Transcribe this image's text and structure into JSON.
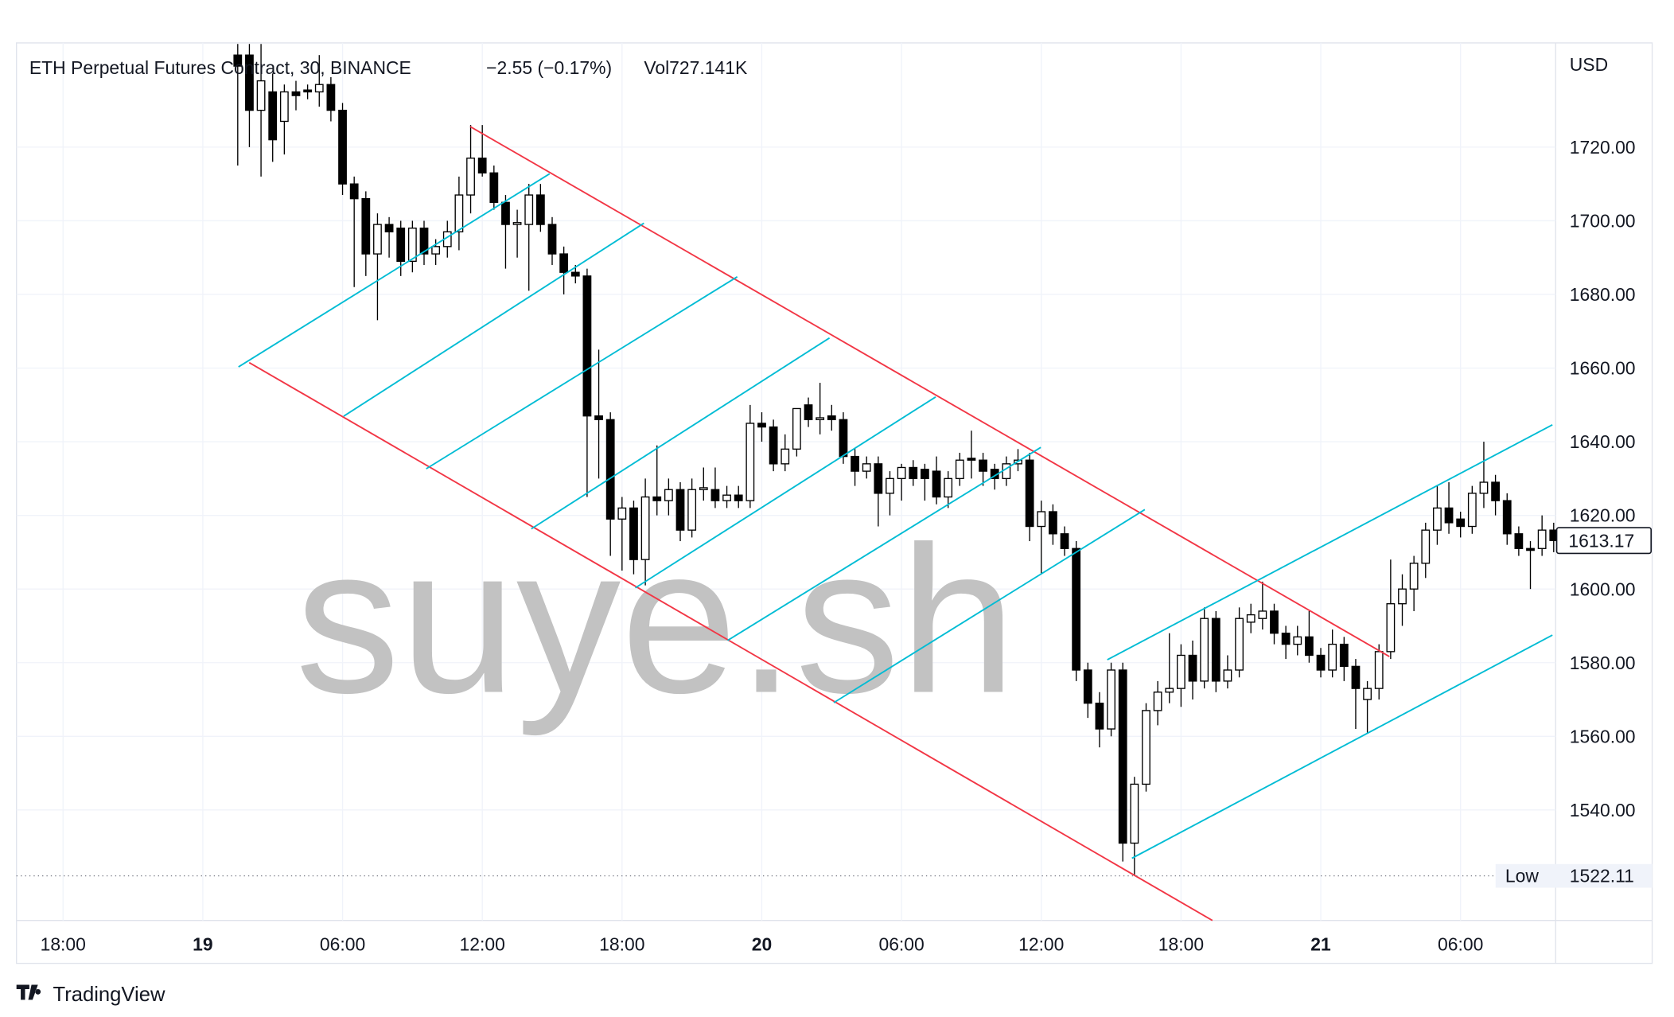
{
  "chart_data": {
    "type": "candlestick",
    "title": "ETH Perpetual Futures Contract, 30, BINANCE",
    "change": "−2.55 (−0.17%)",
    "volume": "Vol727.141K",
    "currency": "USD",
    "watermark": "suye.sh",
    "brand": "TradingView",
    "low_marker": {
      "label": "Low",
      "value": 1522.11
    },
    "x": [
      "19 01:30",
      "19 02:00",
      "19 02:30",
      "19 03:00",
      "19 03:30",
      "19 04:00",
      "19 04:30",
      "19 05:00",
      "19 05:30",
      "19 06:00",
      "19 06:30",
      "19 07:00",
      "19 07:30",
      "19 08:00",
      "19 08:30",
      "19 09:00",
      "19 09:30",
      "19 10:00",
      "19 10:30",
      "19 11:00",
      "19 11:30",
      "19 12:00",
      "19 12:30",
      "19 13:00",
      "19 13:30",
      "19 14:00",
      "19 14:30",
      "19 15:00",
      "19 15:30",
      "19 16:00",
      "19 16:30",
      "19 17:00",
      "19 17:30",
      "19 18:00",
      "19 18:30",
      "19 19:00",
      "19 19:30",
      "19 20:00",
      "19 20:30",
      "19 21:00",
      "19 21:30",
      "19 22:00",
      "19 22:30",
      "19 23:00",
      "19 23:30",
      "20 00:00",
      "20 00:30",
      "20 01:00",
      "20 01:30",
      "20 02:00",
      "20 02:30",
      "20 03:00",
      "20 03:30",
      "20 04:00",
      "20 04:30",
      "20 05:00",
      "20 05:30",
      "20 06:00",
      "20 06:30",
      "20 07:00",
      "20 07:30",
      "20 08:00",
      "20 08:30",
      "20 09:00",
      "20 09:30",
      "20 10:00",
      "20 10:30",
      "20 11:00",
      "20 11:30",
      "20 12:00",
      "20 12:30",
      "20 13:00",
      "20 13:30",
      "20 14:00",
      "20 14:30",
      "20 15:00",
      "20 15:30",
      "20 16:00",
      "20 16:30",
      "20 17:00",
      "20 17:30",
      "20 18:00",
      "20 18:30",
      "20 19:00",
      "20 19:30",
      "20 20:00",
      "20 20:30",
      "20 21:00",
      "20 21:30",
      "20 22:00",
      "20 22:30",
      "20 23:00",
      "20 23:30",
      "21 00:00",
      "21 00:30",
      "21 01:00",
      "21 01:30",
      "21 02:00",
      "21 02:30",
      "21 03:00",
      "21 03:30",
      "21 04:00",
      "21 04:30",
      "21 05:00",
      "21 05:30",
      "21 06:00",
      "21 06:30",
      "21 07:00",
      "21 07:30",
      "21 08:00",
      "21 08:30",
      "21 09:00",
      "21 09:30",
      "21 10:00"
    ],
    "open": [
      1745,
      1745,
      1730,
      1735,
      1727,
      1735,
      1735.5,
      1735,
      1737,
      1730,
      1710,
      1706,
      1691,
      1699,
      1698,
      1689,
      1698,
      1691,
      1693,
      1697,
      1707,
      1717,
      1713,
      1705,
      1699,
      1699,
      1707,
      1699,
      1691,
      1686,
      1685,
      1647,
      1646,
      1619,
      1622,
      1608,
      1625,
      1624,
      1627,
      1616,
      1627,
      1627,
      1624,
      1625.5,
      1624,
      1645,
      1644,
      1634,
      1638,
      1650,
      1646,
      1647,
      1646,
      1636,
      1632,
      1634,
      1626,
      1630,
      1633,
      1632.5,
      1632,
      1625,
      1630,
      1635.5,
      1635,
      1632.5,
      1630,
      1634,
      1635,
      1617,
      1621,
      1615,
      1611,
      1578,
      1569,
      1562,
      1578,
      1531,
      1547,
      1567,
      1572,
      1573,
      1582,
      1575,
      1592,
      1575,
      1578,
      1591,
      1592,
      1594,
      1588,
      1585,
      1587,
      1582,
      1578,
      1585,
      1579,
      1570,
      1573,
      1583,
      1596,
      1600,
      1607,
      1616,
      1622,
      1619,
      1617,
      1626,
      1629,
      1624,
      1615,
      1611,
      1611,
      1616
    ],
    "high": [
      1748,
      1748,
      1748,
      1740,
      1737,
      1738,
      1737,
      1745,
      1739,
      1732,
      1712,
      1708,
      1702,
      1701,
      1700,
      1700,
      1700,
      1695,
      1700,
      1712,
      1726,
      1726,
      1715,
      1707,
      1703,
      1710,
      1710,
      1701,
      1693,
      1688,
      1687,
      1665,
      1648,
      1625,
      1624,
      1630,
      1639,
      1630,
      1629,
      1630,
      1633,
      1633,
      1628,
      1628,
      1650,
      1648,
      1646,
      1642,
      1649,
      1652,
      1656,
      1650,
      1648,
      1638,
      1636,
      1636,
      1632,
      1634,
      1635,
      1634,
      1636,
      1632,
      1637,
      1643,
      1637,
      1634,
      1636,
      1638,
      1637,
      1624,
      1623,
      1617,
      1613,
      1580,
      1572,
      1580,
      1580,
      1549,
      1569,
      1575,
      1588,
      1585,
      1586,
      1595,
      1594,
      1582,
      1595,
      1596,
      1602,
      1596,
      1590,
      1590,
      1594,
      1584,
      1589,
      1587,
      1581,
      1575,
      1585,
      1608,
      1604,
      1609,
      1618,
      1628,
      1629,
      1621,
      1628,
      1640,
      1631,
      1626,
      1617,
      1613,
      1620,
      1618
    ],
    "low": [
      1715,
      1720,
      1712,
      1716,
      1718,
      1730,
      1733,
      1731,
      1727,
      1707,
      1682,
      1685,
      1673,
      1690,
      1685,
      1686,
      1688,
      1688,
      1690,
      1692,
      1702,
      1712,
      1703,
      1687,
      1690,
      1681,
      1697,
      1688,
      1680,
      1683,
      1625,
      1630,
      1609,
      1605,
      1604,
      1601,
      1620,
      1620,
      1613,
      1614,
      1624,
      1622,
      1622,
      1622,
      1622,
      1640,
      1632,
      1632,
      1636,
      1644,
      1642,
      1643,
      1634,
      1628,
      1630,
      1617,
      1620,
      1624,
      1628,
      1624,
      1623,
      1622,
      1628,
      1630,
      1628,
      1627,
      1628,
      1632,
      1613,
      1604,
      1612,
      1609,
      1575,
      1565,
      1557,
      1560,
      1526,
      1522.11,
      1545,
      1563,
      1569,
      1568,
      1570,
      1573,
      1572,
      1573,
      1576,
      1588,
      1589,
      1585,
      1581,
      1582,
      1580,
      1576,
      1576,
      1575,
      1562,
      1561,
      1570,
      1581,
      1590,
      1594,
      1603,
      1612,
      1615,
      1614,
      1615,
      1622,
      1620,
      1612,
      1609,
      1600,
      1609,
      1610
    ],
    "close": [
      1742,
      1730,
      1738,
      1722,
      1735,
      1734,
      1735,
      1737,
      1730,
      1710,
      1706,
      1691,
      1699,
      1697,
      1689,
      1698,
      1691,
      1693,
      1697,
      1707,
      1717,
      1713,
      1705,
      1699,
      1699.5,
      1707,
      1699,
      1691,
      1686,
      1685,
      1647,
      1646,
      1619,
      1622,
      1608,
      1625,
      1624,
      1627,
      1616,
      1627,
      1627.5,
      1624,
      1625.5,
      1624,
      1645,
      1644,
      1634,
      1638,
      1649,
      1646,
      1646.5,
      1646,
      1636,
      1632,
      1634,
      1626,
      1630,
      1633,
      1630,
      1630,
      1625,
      1630,
      1635,
      1635,
      1632,
      1630,
      1634,
      1635,
      1617,
      1621,
      1615,
      1611,
      1578,
      1569,
      1562,
      1578,
      1531,
      1547,
      1567,
      1572,
      1573,
      1582,
      1575,
      1592,
      1575,
      1578,
      1592,
      1593,
      1594,
      1588,
      1585,
      1587,
      1582,
      1578,
      1585,
      1579,
      1573,
      1573,
      1583,
      1596,
      1600,
      1607,
      1616,
      1622,
      1618,
      1617,
      1626,
      1629,
      1624,
      1615,
      1611,
      1610.5,
      1616,
      1613.17
    ],
    "xlim": [
      "18 16:00",
      "21 10:05"
    ],
    "ylim": [
      1510,
      1748.3
    ],
    "xticks": [
      {
        "value": "18 18:00",
        "label": "18:00"
      },
      {
        "value": "19 00:00",
        "label": "19"
      },
      {
        "value": "19 06:00",
        "label": "06:00"
      },
      {
        "value": "19 12:00",
        "label": "12:00"
      },
      {
        "value": "19 18:00",
        "label": "18:00"
      },
      {
        "value": "20 00:00",
        "label": "20"
      },
      {
        "value": "20 06:00",
        "label": "06:00"
      },
      {
        "value": "20 12:00",
        "label": "12:00"
      },
      {
        "value": "20 18:00",
        "label": "18:00"
      },
      {
        "value": "21 00:00",
        "label": "21"
      },
      {
        "value": "21 06:00",
        "label": "06:00"
      }
    ],
    "yticks": [
      {
        "value": 1540,
        "label": "1540.00"
      },
      {
        "value": 1560,
        "label": "1560.00"
      },
      {
        "value": 1580,
        "label": "1580.00"
      },
      {
        "value": 1600,
        "label": "1600.00"
      },
      {
        "value": 1620,
        "label": "1620.00"
      },
      {
        "value": 1640,
        "label": "1640.00"
      },
      {
        "value": 1660,
        "label": "1660.00"
      },
      {
        "value": 1680,
        "label": "1680.00"
      },
      {
        "value": 1700,
        "label": "1700.00"
      },
      {
        "value": 1720,
        "label": "1720.00"
      }
    ],
    "grid": true,
    "up_color": "#ffffff",
    "down_color": "#000000"
  }
}
